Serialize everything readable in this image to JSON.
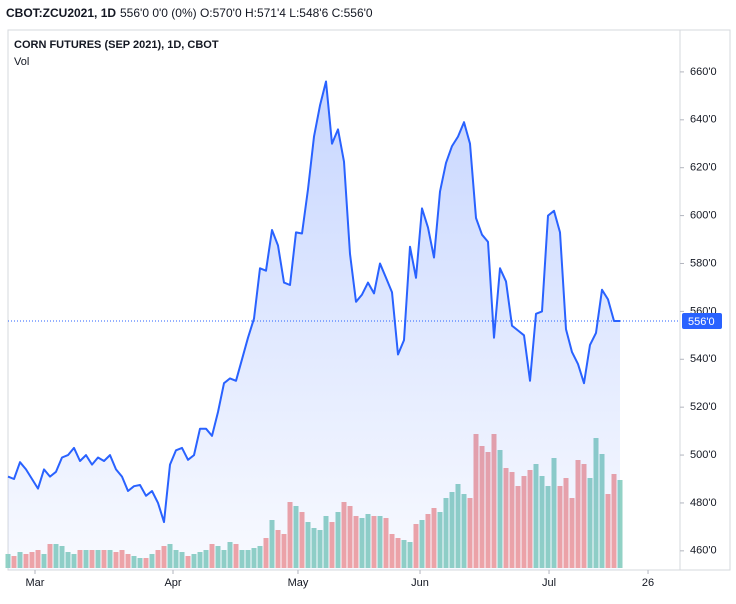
{
  "header": {
    "symbol": "CBOT:ZCU2021, 1D",
    "quote": "556'0 0'0 (0%) O:570'0 H:571'4 L:548'6 C:556'0"
  },
  "chart_data": {
    "type": "line",
    "title": "CORN FUTURES (SEP 2021), 1D, CBOT",
    "subtitle": "Vol",
    "color": "#2962ff",
    "up_color": "#92d2c5",
    "down_color": "#f3a5a5",
    "xlim": [
      0,
      112
    ],
    "xticks": [
      {
        "value": 4.5,
        "label": "Mar"
      },
      {
        "value": 27.5,
        "label": "Apr"
      },
      {
        "value": 48.33,
        "label": "May"
      },
      {
        "value": 68.67,
        "label": "Jun"
      },
      {
        "value": 90.17,
        "label": "Jul"
      },
      {
        "value": 106.67,
        "label": "26"
      }
    ],
    "ylim": [
      452,
      677.5
    ],
    "yticks": [
      {
        "value": 460,
        "label": "460'0"
      },
      {
        "value": 480,
        "label": "480'0"
      },
      {
        "value": 500,
        "label": "500'0"
      },
      {
        "value": 520,
        "label": "520'0"
      },
      {
        "value": 540,
        "label": "540'0"
      },
      {
        "value": 560,
        "label": "560'0"
      },
      {
        "value": 580,
        "label": "580'0"
      },
      {
        "value": 600,
        "label": "600'0"
      },
      {
        "value": 620,
        "label": "620'0"
      },
      {
        "value": 640,
        "label": "640'0"
      },
      {
        "value": 660,
        "label": "660'0"
      }
    ],
    "last": {
      "value": 556,
      "label": "556'0"
    },
    "values": [
      491,
      490,
      497,
      494,
      490,
      486,
      494,
      491,
      493,
      499,
      500,
      503,
      497.5,
      500,
      496,
      499,
      497.5,
      500,
      494,
      491,
      485,
      487,
      487.5,
      483,
      485,
      480,
      472,
      496,
      502,
      503,
      498,
      500,
      511,
      511,
      508,
      518,
      530,
      532,
      531,
      540,
      549,
      557,
      578,
      577,
      594,
      587.5,
      572,
      571,
      593,
      592.5,
      611,
      633,
      646,
      656,
      630,
      636,
      622.5,
      584,
      564,
      567,
      572,
      567.5,
      580,
      574,
      568,
      542,
      548,
      587,
      574,
      603,
      595,
      582.5,
      610,
      622,
      629,
      633,
      639,
      630,
      599,
      592,
      589,
      549,
      578,
      572.5,
      554,
      552,
      550,
      531,
      559,
      560,
      600,
      602,
      593,
      552.5,
      543,
      538,
      530,
      546,
      551,
      569,
      565,
      556,
      556
    ],
    "volume": [
      14,
      12,
      16,
      14,
      16,
      18,
      14,
      24,
      24,
      22,
      16,
      14,
      18,
      18,
      18,
      18,
      18,
      18,
      16,
      18,
      14,
      12,
      10,
      10,
      14,
      18,
      22,
      24,
      18,
      16,
      12,
      14,
      16,
      18,
      24,
      22,
      18,
      26,
      24,
      18,
      18,
      20,
      22,
      30,
      48,
      38,
      34,
      66,
      62,
      56,
      46,
      40,
      38,
      52,
      46,
      56,
      66,
      62,
      52,
      50,
      54,
      52,
      52,
      50,
      34,
      30,
      28,
      26,
      44,
      48,
      54,
      60,
      56,
      70,
      76,
      84,
      74,
      70,
      134,
      122,
      116,
      134,
      118,
      100,
      96,
      82,
      92,
      98,
      104,
      92,
      82,
      110,
      82,
      90,
      70,
      108,
      104,
      90,
      130,
      114,
      74,
      94,
      88
    ]
  }
}
